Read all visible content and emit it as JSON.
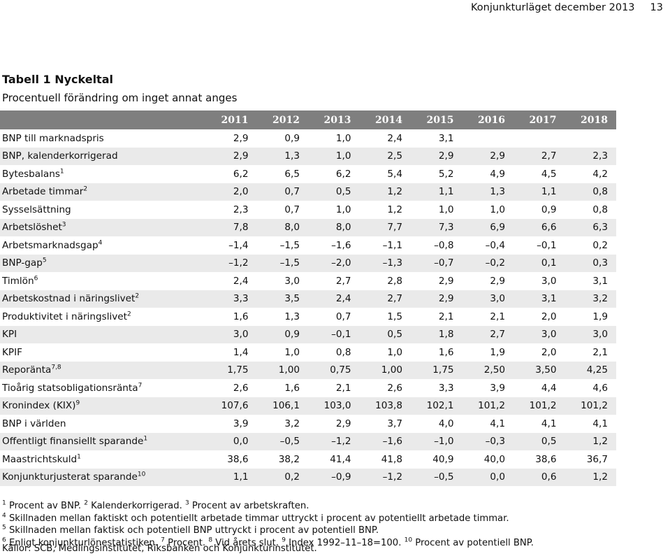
{
  "header": {
    "report_title": "Konjunkturläget december 2013",
    "page_number": "13"
  },
  "table": {
    "title": "Tabell 1 Nyckeltal",
    "subtitle": "Procentuell förändring om inget annat anges",
    "columns": [
      "2011",
      "2012",
      "2013",
      "2014",
      "2015",
      "2016",
      "2017",
      "2018"
    ],
    "rows": [
      {
        "label": "BNP till marknadspris",
        "note": "",
        "values": [
          "2,9",
          "0,9",
          "1,0",
          "2,4",
          "3,1",
          "",
          "",
          ""
        ]
      },
      {
        "label": "BNP, kalenderkorrigerad",
        "note": "",
        "values": [
          "2,9",
          "1,3",
          "1,0",
          "2,5",
          "2,9",
          "2,9",
          "2,7",
          "2,3"
        ]
      },
      {
        "label": "Bytesbalans",
        "note": "1",
        "values": [
          "6,2",
          "6,5",
          "6,2",
          "5,4",
          "5,2",
          "4,9",
          "4,5",
          "4,2"
        ]
      },
      {
        "label": "Arbetade timmar",
        "note": "2",
        "values": [
          "2,0",
          "0,7",
          "0,5",
          "1,2",
          "1,1",
          "1,3",
          "1,1",
          "0,8"
        ]
      },
      {
        "label": "Sysselsättning",
        "note": "",
        "values": [
          "2,3",
          "0,7",
          "1,0",
          "1,2",
          "1,0",
          "1,0",
          "0,9",
          "0,8"
        ]
      },
      {
        "label": "Arbetslöshet",
        "note": "3",
        "values": [
          "7,8",
          "8,0",
          "8,0",
          "7,7",
          "7,3",
          "6,9",
          "6,6",
          "6,3"
        ]
      },
      {
        "label": "Arbetsmarknadsgap",
        "note": "4",
        "values": [
          "–1,4",
          "–1,5",
          "–1,6",
          "–1,1",
          "–0,8",
          "–0,4",
          "–0,1",
          "0,2"
        ]
      },
      {
        "label": "BNP-gap",
        "note": "5",
        "values": [
          "–1,2",
          "–1,5",
          "–2,0",
          "–1,3",
          "–0,7",
          "–0,2",
          "0,1",
          "0,3"
        ]
      },
      {
        "label": "Timlön",
        "note": "6",
        "values": [
          "2,4",
          "3,0",
          "2,7",
          "2,8",
          "2,9",
          "2,9",
          "3,0",
          "3,1"
        ]
      },
      {
        "label": "Arbetskostnad i näringslivet",
        "note": "2",
        "values": [
          "3,3",
          "3,5",
          "2,4",
          "2,7",
          "2,9",
          "3,0",
          "3,1",
          "3,2"
        ]
      },
      {
        "label": "Produktivitet i näringslivet",
        "note": "2",
        "values": [
          "1,6",
          "1,3",
          "0,7",
          "1,5",
          "2,1",
          "2,1",
          "2,0",
          "1,9"
        ]
      },
      {
        "label": "KPI",
        "note": "",
        "values": [
          "3,0",
          "0,9",
          "–0,1",
          "0,5",
          "1,8",
          "2,7",
          "3,0",
          "3,0"
        ]
      },
      {
        "label": "KPIF",
        "note": "",
        "values": [
          "1,4",
          "1,0",
          "0,8",
          "1,0",
          "1,6",
          "1,9",
          "2,0",
          "2,1"
        ]
      },
      {
        "label": "Reporänta",
        "note": "7,8",
        "values": [
          "1,75",
          "1,00",
          "0,75",
          "1,00",
          "1,75",
          "2,50",
          "3,50",
          "4,25"
        ]
      },
      {
        "label": "Tioårig statsobligationsränta",
        "note": "7",
        "values": [
          "2,6",
          "1,6",
          "2,1",
          "2,6",
          "3,3",
          "3,9",
          "4,4",
          "4,6"
        ]
      },
      {
        "label": "Kronindex (KIX)",
        "note": "9",
        "values": [
          "107,6",
          "106,1",
          "103,0",
          "103,8",
          "102,1",
          "101,2",
          "101,2",
          "101,2"
        ]
      },
      {
        "label": "BNP i världen",
        "note": "",
        "values": [
          "3,9",
          "3,2",
          "2,9",
          "3,7",
          "4,0",
          "4,1",
          "4,1",
          "4,1"
        ]
      },
      {
        "label": "Offentligt finansiellt sparande",
        "note": "1",
        "values": [
          "0,0",
          "–0,5",
          "–1,2",
          "–1,6",
          "–1,0",
          "–0,3",
          "0,5",
          "1,2"
        ]
      },
      {
        "label": "Maastrichtskuld",
        "note": "1",
        "values": [
          "38,6",
          "38,2",
          "41,4",
          "41,8",
          "40,9",
          "40,0",
          "38,6",
          "36,7"
        ]
      },
      {
        "label": "Konjunkturjusterat sparande",
        "note": "10",
        "values": [
          "1,1",
          "0,2",
          "–0,9",
          "–1,2",
          "–0,5",
          "0,0",
          "0,6",
          "1,2"
        ]
      }
    ]
  },
  "footnotes": [
    {
      "num": "1",
      "text": "Procent av BNP."
    },
    {
      "num": "2",
      "text": "Kalenderkorrigerad."
    },
    {
      "num": "3",
      "text": "Procent av arbetskraften."
    },
    {
      "num": "4",
      "text": "Skillnaden mellan faktiskt och potentiellt arbetade timmar uttryckt i procent av potentiellt arbetade timmar."
    },
    {
      "num": "5",
      "text": "Skillnaden mellan faktisk och potentiell BNP uttryckt i procent av potentiell BNP."
    },
    {
      "num": "6",
      "text": "Enligt konjunkturlönestatistiken."
    },
    {
      "num": "7",
      "text": "Procent."
    },
    {
      "num": "8",
      "text": "Vid årets slut."
    },
    {
      "num": "9",
      "text": "Index 1992–11–18=100."
    },
    {
      "num": "10",
      "text": "Procent av potentiell BNP."
    }
  ],
  "sources": "Källor: SCB, Medlingsinstitutet, Riksbanken och Konjunkturinstitutet.",
  "colors": {
    "header_background": "#7f7f7f",
    "header_text": "#ffffff",
    "alt_row_background": "#eaeaea"
  }
}
